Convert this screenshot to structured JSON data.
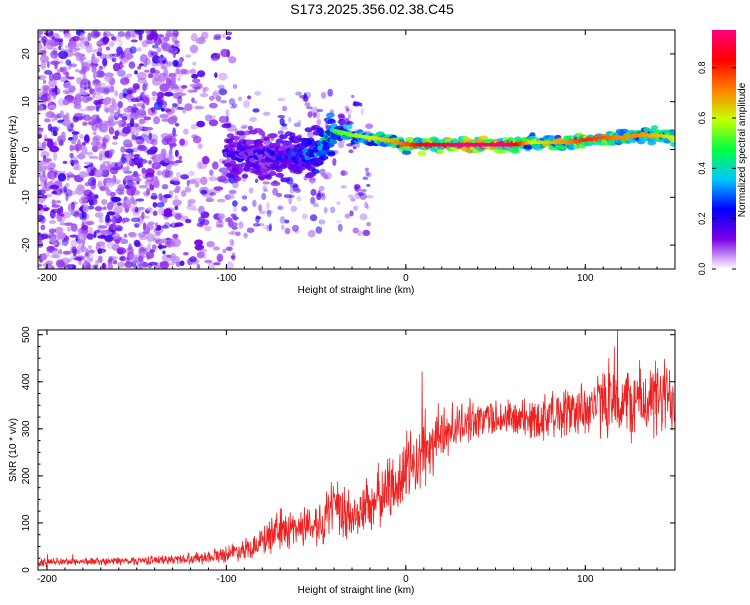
{
  "chart_data": [
    {
      "type": "heatmap",
      "title": "S173.2025.356.02.38.C45",
      "xlabel": "Height of straight line (km)",
      "ylabel": "Frequency (Hz)",
      "xlim": [
        -205,
        150
      ],
      "ylim": [
        -25,
        25
      ],
      "xticks": [
        -200,
        -100,
        0,
        100
      ],
      "xtick_labels": [
        "-200",
        "-100",
        "0",
        "100"
      ],
      "yticks": [
        -20,
        -10,
        0,
        10,
        20
      ],
      "ytick_labels": [
        "-20",
        "-10",
        "0",
        "10",
        "20"
      ],
      "colorbar": {
        "label": "Normalized spectral amplitude",
        "range": [
          0,
          0.95
        ],
        "ticks": [
          0,
          0.2,
          0.4,
          0.6,
          0.8
        ],
        "tick_labels": [
          "0.0",
          "0.2",
          "0.4",
          "0.6",
          "0.8"
        ],
        "colors": [
          "#ffffff",
          "#7a00e6",
          "#0000ff",
          "#00c8ff",
          "#00ff40",
          "#c8ff00",
          "#ff8000",
          "#ff0000",
          "#ff0080"
        ]
      },
      "ridge": {
        "x": [
          -100,
          -90,
          -80,
          -70,
          -60,
          -50,
          -40,
          -30,
          -20,
          -10,
          0,
          10,
          20,
          30,
          40,
          50,
          60,
          70,
          80,
          90,
          100,
          110,
          120,
          130,
          140,
          150
        ],
        "y": [
          -1,
          -1.5,
          -1,
          -1.5,
          -1,
          -0.5,
          4,
          3,
          2.5,
          2,
          1,
          1,
          1,
          1,
          1,
          1,
          1,
          1.5,
          1.5,
          1.5,
          2,
          2.5,
          2.5,
          3,
          3,
          2.5
        ],
        "amplitude": [
          0.2,
          0.25,
          0.2,
          0.25,
          0.3,
          0.35,
          0.5,
          0.55,
          0.6,
          0.65,
          0.75,
          0.85,
          0.9,
          0.95,
          0.95,
          0.95,
          0.9,
          0.6,
          0.65,
          0.7,
          0.8,
          0.75,
          0.7,
          0.7,
          0.65,
          0.6
        ]
      }
    },
    {
      "type": "line",
      "xlabel": "Height of straight line (km)",
      "ylabel": "SNR (10 * v/v)",
      "xlim": [
        -205,
        150
      ],
      "ylim": [
        0,
        510
      ],
      "xticks": [
        -200,
        -100,
        0,
        100
      ],
      "xtick_labels": [
        "-200",
        "-100",
        "0",
        "100"
      ],
      "yticks": [
        0,
        100,
        200,
        300,
        400,
        500
      ],
      "ytick_labels": [
        "0",
        "100",
        "200",
        "300",
        "400",
        "500"
      ],
      "color": "#ee2020",
      "series": [
        {
          "name": "SNR",
          "x": [
            -205,
            -190,
            -170,
            -150,
            -130,
            -110,
            -100,
            -90,
            -80,
            -70,
            -60,
            -50,
            -40,
            -30,
            -20,
            -10,
            0,
            10,
            20,
            30,
            40,
            50,
            60,
            70,
            80,
            90,
            100,
            110,
            120,
            130,
            140,
            150
          ],
          "values": [
            15,
            18,
            18,
            20,
            22,
            28,
            35,
            45,
            60,
            85,
            90,
            100,
            125,
            110,
            140,
            170,
            210,
            245,
            290,
            310,
            320,
            325,
            320,
            320,
            330,
            335,
            345,
            355,
            350,
            360,
            360,
            370
          ],
          "noise": [
            8,
            8,
            8,
            9,
            10,
            14,
            18,
            22,
            30,
            45,
            40,
            45,
            70,
            55,
            60,
            70,
            80,
            70,
            60,
            45,
            40,
            40,
            40,
            45,
            50,
            55,
            60,
            70,
            75,
            80,
            85,
            85
          ]
        }
      ]
    }
  ]
}
